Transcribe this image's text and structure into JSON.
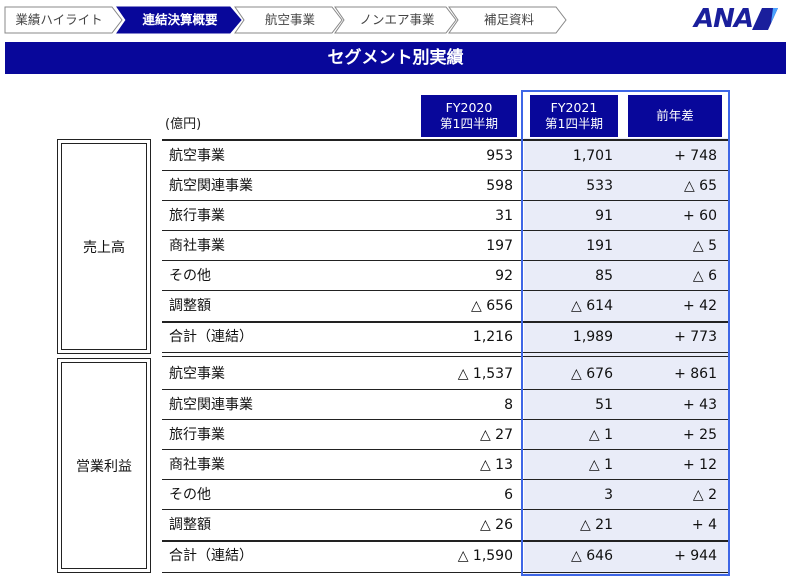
{
  "nav": {
    "tabs": [
      {
        "label": "業績ハイライト",
        "active": false
      },
      {
        "label": "連結決算概要",
        "active": true
      },
      {
        "label": "航空事業",
        "active": false
      },
      {
        "label": "ノンエア事業",
        "active": false
      },
      {
        "label": "補足資料",
        "active": false
      }
    ]
  },
  "logo": {
    "text": "ANA"
  },
  "title": "セグメント別実績",
  "unit": "(億円)",
  "columns": [
    {
      "line1": "FY2020",
      "line2": "第1四半期"
    },
    {
      "line1": "FY2021",
      "line2": "第1四半期"
    },
    {
      "line1": "前年差",
      "line2": ""
    }
  ],
  "groups": [
    {
      "name": "売上高",
      "rows": [
        {
          "label": "航空事業",
          "fy2020": "953",
          "fy2021": "1,701",
          "diff": "+ 748"
        },
        {
          "label": "航空関連事業",
          "fy2020": "598",
          "fy2021": "533",
          "diff": "△ 65"
        },
        {
          "label": "旅行事業",
          "fy2020": "31",
          "fy2021": "91",
          "diff": "+ 60"
        },
        {
          "label": "商社事業",
          "fy2020": "197",
          "fy2021": "191",
          "diff": "△ 5"
        },
        {
          "label": "その他",
          "fy2020": "92",
          "fy2021": "85",
          "diff": "△ 6"
        },
        {
          "label": "調整額",
          "fy2020": "△ 656",
          "fy2021": "△ 614",
          "diff": "+ 42"
        },
        {
          "label": "合計（連結）",
          "fy2020": "1,216",
          "fy2021": "1,989",
          "diff": "+ 773"
        }
      ]
    },
    {
      "name": "営業利益",
      "rows": [
        {
          "label": "航空事業",
          "fy2020": "△ 1,537",
          "fy2021": "△ 676",
          "diff": "+ 861"
        },
        {
          "label": "航空関連事業",
          "fy2020": "8",
          "fy2021": "51",
          "diff": "+ 43"
        },
        {
          "label": "旅行事業",
          "fy2020": "△ 27",
          "fy2021": "△ 1",
          "diff": "+ 25"
        },
        {
          "label": "商社事業",
          "fy2020": "△ 13",
          "fy2021": "△ 1",
          "diff": "+ 12"
        },
        {
          "label": "その他",
          "fy2020": "6",
          "fy2021": "3",
          "diff": "△ 2"
        },
        {
          "label": "調整額",
          "fy2020": "△ 26",
          "fy2021": "△ 21",
          "diff": "+ 4"
        },
        {
          "label": "合計（連結）",
          "fy2020": "△ 1,590",
          "fy2021": "△ 646",
          "diff": "+ 944"
        }
      ]
    }
  ],
  "colors": {
    "brand_navy": "#08079a",
    "highlight_border": "#3e66e6",
    "highlight_fill": "#e9ecf8"
  }
}
